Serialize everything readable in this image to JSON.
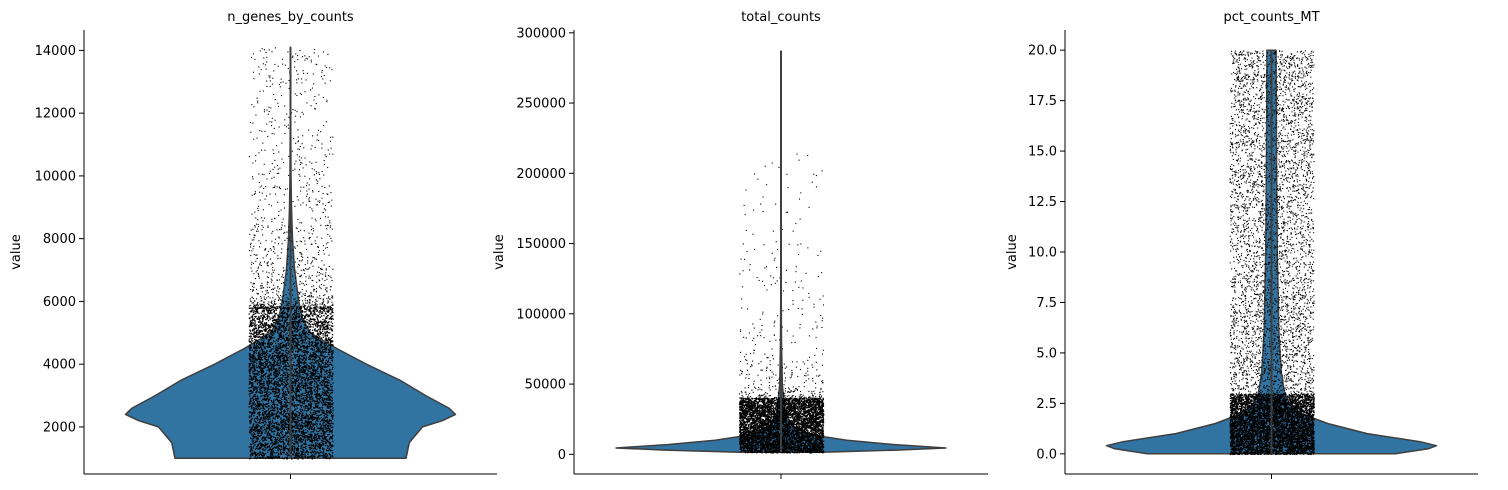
{
  "chart_data": [
    {
      "type": "violin",
      "title": "n_genes_by_counts",
      "ylabel": "value",
      "ylim": [
        500,
        14650
      ],
      "yticks": [
        2000,
        4000,
        6000,
        8000,
        10000,
        12000,
        14000
      ],
      "ytick_labels": [
        "2000",
        "4000",
        "6000",
        "8000",
        "10000",
        "12000",
        "14000"
      ],
      "data_min": 1000,
      "data_max": 14100,
      "density": [
        [
          1000,
          0.7
        ],
        [
          1500,
          0.72
        ],
        [
          2000,
          0.8
        ],
        [
          2200,
          0.92
        ],
        [
          2400,
          1.0
        ],
        [
          2600,
          0.96
        ],
        [
          3000,
          0.82
        ],
        [
          3500,
          0.66
        ],
        [
          4000,
          0.46
        ],
        [
          4500,
          0.28
        ],
        [
          5000,
          0.12
        ],
        [
          5500,
          0.07
        ],
        [
          6000,
          0.05
        ],
        [
          7000,
          0.025
        ],
        [
          8000,
          0.012
        ],
        [
          9000,
          0.006
        ],
        [
          10000,
          0.003
        ],
        [
          12000,
          0.0015
        ],
        [
          14100,
          0.0008
        ]
      ],
      "jitter_dense_max": 5800,
      "jitter_sparse_max": 14100,
      "color": "#3274a1"
    },
    {
      "type": "violin",
      "title": "total_counts",
      "ylabel": "value",
      "ylim": [
        -14000,
        302000
      ],
      "yticks": [
        0,
        50000,
        100000,
        150000,
        200000,
        250000,
        300000
      ],
      "ytick_labels": [
        "0",
        "50000",
        "100000",
        "150000",
        "200000",
        "250000",
        "300000"
      ],
      "data_min": 1500,
      "data_max": 287000,
      "density": [
        [
          1500,
          0.25
        ],
        [
          3000,
          0.7
        ],
        [
          4500,
          1.0
        ],
        [
          7000,
          0.68
        ],
        [
          10000,
          0.4
        ],
        [
          14000,
          0.18
        ],
        [
          20000,
          0.07
        ],
        [
          30000,
          0.025
        ],
        [
          50000,
          0.008
        ],
        [
          80000,
          0.003
        ],
        [
          120000,
          0.0015
        ],
        [
          200000,
          0.001
        ],
        [
          287000,
          0.001
        ]
      ],
      "jitter_dense_max": 40000,
      "jitter_sparse_max": 215000,
      "color": "#3274a1"
    },
    {
      "type": "violin",
      "title": "pct_counts_MT",
      "ylabel": "value",
      "ylim": [
        -1.0,
        21.0
      ],
      "yticks": [
        0.0,
        2.5,
        5.0,
        7.5,
        10.0,
        12.5,
        15.0,
        17.5,
        20.0
      ],
      "ytick_labels": [
        "0.0",
        "2.5",
        "5.0",
        "7.5",
        "10.0",
        "12.5",
        "15.0",
        "17.5",
        "20.0"
      ],
      "data_min": 0.0,
      "data_max": 20.0,
      "density": [
        [
          0.0,
          0.75
        ],
        [
          0.25,
          0.95
        ],
        [
          0.4,
          1.0
        ],
        [
          0.6,
          0.9
        ],
        [
          1.0,
          0.58
        ],
        [
          1.5,
          0.34
        ],
        [
          2.0,
          0.18
        ],
        [
          2.5,
          0.11
        ],
        [
          3.0,
          0.08
        ],
        [
          4.0,
          0.06
        ],
        [
          6.0,
          0.045
        ],
        [
          10.0,
          0.035
        ],
        [
          15.0,
          0.03
        ],
        [
          20.0,
          0.028
        ]
      ],
      "jitter_dense_max": 3.0,
      "jitter_sparse_max": 20.0,
      "color": "#3274a1"
    }
  ]
}
